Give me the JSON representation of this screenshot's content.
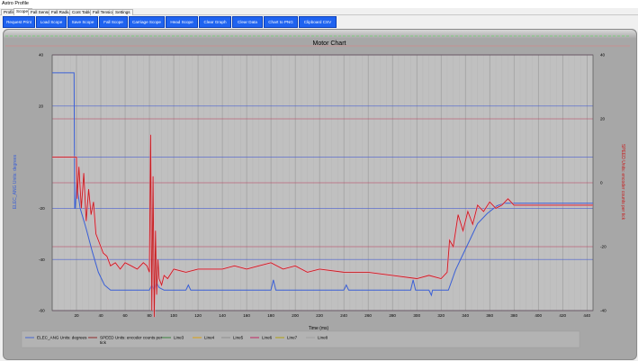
{
  "window": {
    "title": "Astro Profile"
  },
  "tabs": [
    "Profile",
    "Scopes",
    "Fall Sensor",
    "Fall Radius",
    "Cont Table",
    "Fall Tension",
    "Settings"
  ],
  "toolbar": {
    "buttons": [
      "Request Print",
      "Load Scope",
      "Save Scope",
      "Fall Scope",
      "Carriage Scope",
      "Head Scope",
      "Clear Graph",
      "Clear Data",
      "Chart to PNG",
      "Clipboard CSV"
    ]
  },
  "colors": {
    "accent_button": "#1f63f0",
    "plot_bg": "#c0c0c0",
    "series1": "#3a5fd6",
    "series2": "#c81e1e"
  },
  "chart_data": {
    "type": "line",
    "title": "Motor Chart",
    "xlabel": "Time (ms)",
    "ylabel": "ELEC_ANG Units: degrees",
    "ylabel_right": "SPEED Units: encoder counts per tick",
    "xlim": [
      0,
      445
    ],
    "ylim": [
      -60,
      40
    ],
    "ylim_right": [
      -40,
      40
    ],
    "x_ticks": [
      20,
      40,
      60,
      80,
      100,
      120,
      140,
      160,
      180,
      200,
      220,
      240,
      260,
      280,
      300,
      320,
      340,
      360,
      380,
      400,
      420,
      440
    ],
    "y_ticks_left": [
      40,
      20,
      0,
      -20,
      -40,
      -60
    ],
    "y_tick_labels_left": [
      "40",
      "20",
      "",
      "-20",
      "-40",
      "-60"
    ],
    "y_ticks_right": [
      40,
      20,
      0,
      -20,
      -40
    ],
    "y_tick_labels_right": [
      "40",
      "20",
      "0",
      "-20",
      "-40"
    ],
    "grid": true,
    "legend_position": "bottom",
    "legend": [
      "ELEC_ANG Units: degrees",
      "SPEED Units: encoder counts per tick",
      "Line3",
      "Line4",
      "Line5",
      "Line6",
      "Line7",
      "Line8"
    ],
    "series": [
      {
        "name": "ELEC_ANG Units: degrees",
        "axis": "left",
        "color": "#3a5fd6",
        "x": [
          0,
          18,
          18.5,
          19,
          20,
          23,
          28,
          33,
          38,
          43,
          48,
          60,
          80,
          82,
          84,
          86,
          88,
          92,
          100,
          110,
          112,
          114,
          130,
          180,
          182,
          184,
          200,
          240,
          242,
          244,
          260,
          295,
          297,
          299,
          300,
          310,
          312,
          313,
          326,
          332,
          338,
          344,
          350,
          358,
          366,
          372,
          380,
          445
        ],
        "y": [
          33,
          33,
          -20,
          -20,
          -10,
          -20,
          -28,
          -37,
          -45,
          -50,
          -52,
          -52,
          -52,
          -50,
          -52,
          -49,
          -51,
          -52,
          -52,
          -52,
          -50,
          -52,
          -52,
          -52,
          -48,
          -52,
          -52,
          -52,
          -50,
          -52,
          -52,
          -52,
          -48,
          -52,
          -52,
          -52,
          -54,
          -52,
          -52,
          -44,
          -38,
          -32,
          -26,
          -22,
          -19,
          -18,
          -18,
          -18
        ]
      },
      {
        "name": "SPEED Units: encoder counts per tick",
        "axis": "right",
        "color": "#c81e1e",
        "x": [
          0,
          20,
          20.5,
          22,
          24,
          26,
          28,
          30,
          32,
          34,
          36,
          38,
          40,
          42,
          45,
          48,
          52,
          56,
          60,
          65,
          70,
          75,
          78,
          80,
          81,
          82,
          83,
          84,
          85,
          86,
          87,
          88,
          90,
          92,
          95,
          100,
          110,
          120,
          140,
          150,
          160,
          170,
          180,
          190,
          200,
          210,
          220,
          240,
          260,
          280,
          300,
          310,
          320,
          325,
          327,
          330,
          334,
          338,
          342,
          346,
          350,
          355,
          360,
          365,
          370,
          375,
          380,
          445
        ],
        "y": [
          8,
          8,
          -5,
          5,
          -8,
          3,
          -12,
          -2,
          -10,
          -6,
          -16,
          -18,
          -20,
          -22,
          -23,
          -26,
          -25,
          -27,
          -25,
          -26,
          -27,
          -25,
          -26,
          -28,
          15,
          -40,
          2,
          -42,
          -15,
          -35,
          -24,
          -30,
          -32,
          -29,
          -30,
          -27,
          -28,
          -27,
          -27,
          -26,
          -27,
          -26,
          -25,
          -27,
          -26,
          -28,
          -27,
          -28,
          -28,
          -29,
          -30,
          -29,
          -30,
          -28,
          -18,
          -20,
          -10,
          -15,
          -9,
          -13,
          -7,
          -9,
          -6,
          -8,
          -7,
          -5,
          -7,
          -7
        ]
      }
    ]
  }
}
